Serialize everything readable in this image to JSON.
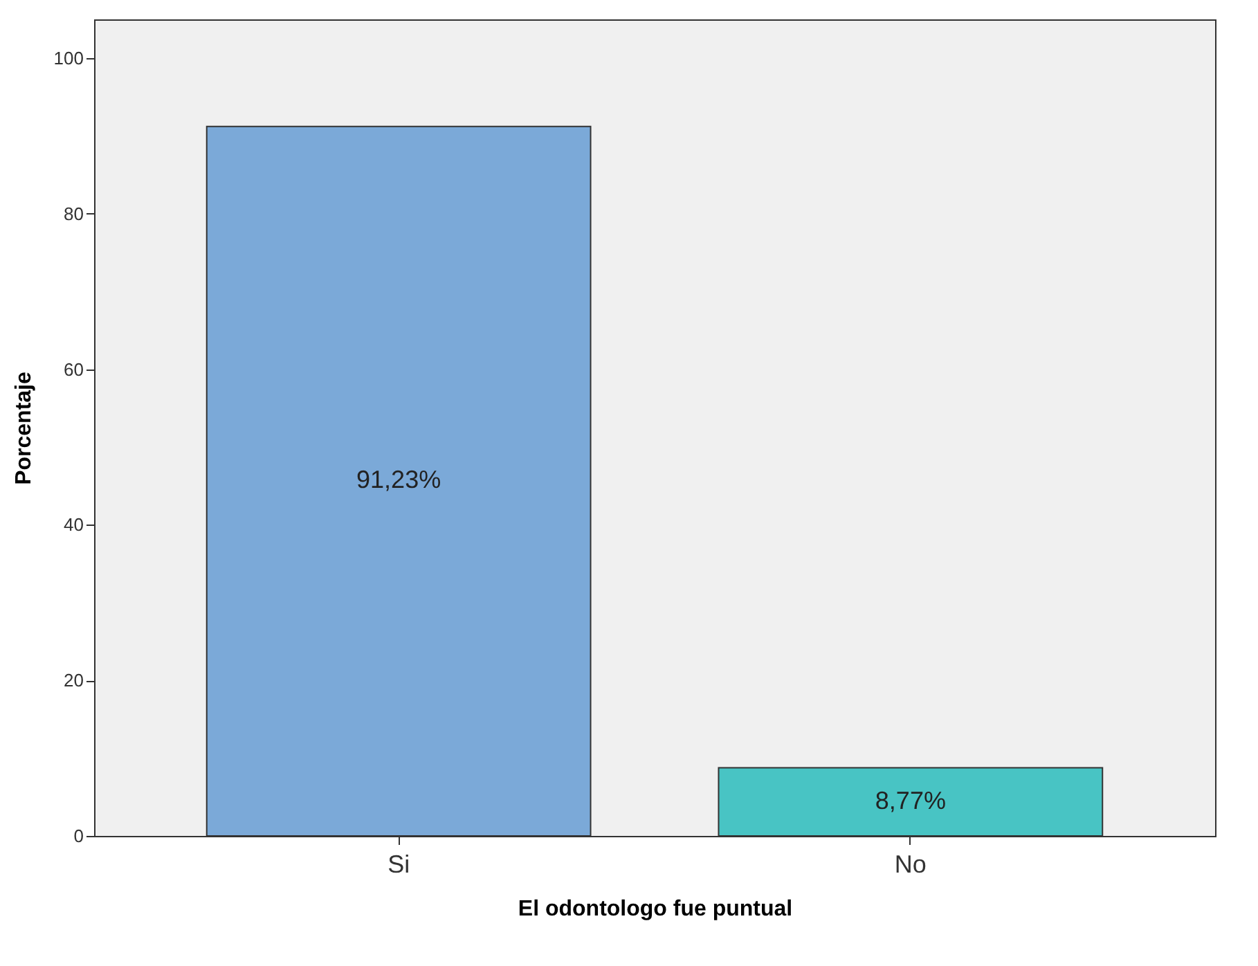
{
  "chart_data": {
    "type": "bar",
    "xlabel": "El odontologo fue puntual",
    "ylabel": "Porcentaje",
    "categories": [
      "Si",
      "No"
    ],
    "values": [
      91.23,
      8.77
    ],
    "colors": [
      "#7ba9d8",
      "#48c4c4"
    ],
    "value_labels": [
      "91,23%",
      "8,77%"
    ],
    "ylim": [
      0,
      105
    ],
    "yticks": [
      0,
      20,
      40,
      60,
      80,
      100
    ]
  }
}
